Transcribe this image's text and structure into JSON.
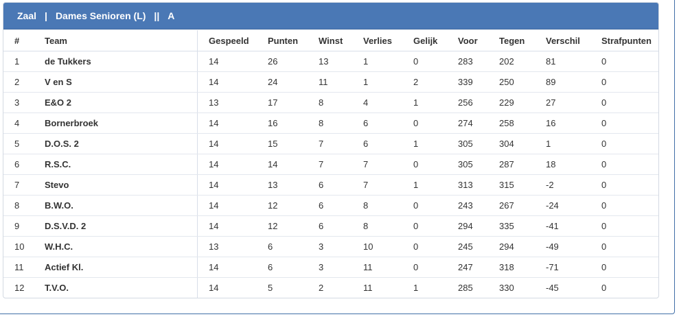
{
  "header": {
    "competition": "Zaal",
    "separator1": "|",
    "category": "Dames Senioren (L)",
    "separator2": "||",
    "poule": "A"
  },
  "table": {
    "columns": [
      "#",
      "Team",
      "Gespeeld",
      "Punten",
      "Winst",
      "Verlies",
      "Gelijk",
      "Voor",
      "Tegen",
      "Verschil",
      "Strafpunten"
    ],
    "rows": [
      [
        "1",
        "de Tukkers",
        "14",
        "26",
        "13",
        "1",
        "0",
        "283",
        "202",
        "81",
        "0"
      ],
      [
        "2",
        "V en S",
        "14",
        "24",
        "11",
        "1",
        "2",
        "339",
        "250",
        "89",
        "0"
      ],
      [
        "3",
        "E&O 2",
        "13",
        "17",
        "8",
        "4",
        "1",
        "256",
        "229",
        "27",
        "0"
      ],
      [
        "4",
        "Bornerbroek",
        "14",
        "16",
        "8",
        "6",
        "0",
        "274",
        "258",
        "16",
        "0"
      ],
      [
        "5",
        "D.O.S. 2",
        "14",
        "15",
        "7",
        "6",
        "1",
        "305",
        "304",
        "1",
        "0"
      ],
      [
        "6",
        "R.S.C.",
        "14",
        "14",
        "7",
        "7",
        "0",
        "305",
        "287",
        "18",
        "0"
      ],
      [
        "7",
        "Stevo",
        "14",
        "13",
        "6",
        "7",
        "1",
        "313",
        "315",
        "-2",
        "0"
      ],
      [
        "8",
        "B.W.O.",
        "14",
        "12",
        "6",
        "8",
        "0",
        "243",
        "267",
        "-24",
        "0"
      ],
      [
        "9",
        "D.S.V.D. 2",
        "14",
        "12",
        "6",
        "8",
        "0",
        "294",
        "335",
        "-41",
        "0"
      ],
      [
        "10",
        "W.H.C.",
        "13",
        "6",
        "3",
        "10",
        "0",
        "245",
        "294",
        "-49",
        "0"
      ],
      [
        "11",
        "Actief Kl.",
        "14",
        "6",
        "3",
        "11",
        "0",
        "247",
        "318",
        "-71",
        "0"
      ],
      [
        "12",
        "T.V.O.",
        "14",
        "5",
        "2",
        "11",
        "1",
        "285",
        "330",
        "-45",
        "0"
      ]
    ]
  },
  "colors": {
    "header_bg": "#4a78b5",
    "header_text": "#ffffff",
    "text": "#333333",
    "border": "#d8dee8"
  }
}
